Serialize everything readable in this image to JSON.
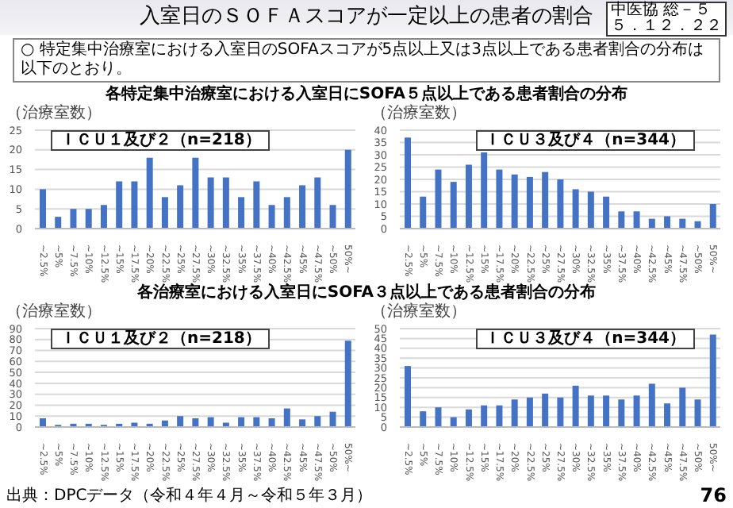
{
  "chart_data": [
    {
      "type": "bar",
      "title": "各特定集中治療室における入室日にSOFA５点以上である患者割合の分布",
      "subtitle": "ＩＣＵ１及び２（n=218）",
      "ylabel": "（治療室数）",
      "categories": [
        "~2.5%",
        "~5%",
        "~7.5%",
        "~10%",
        "~12.5%",
        "~15%",
        "~17.5%",
        "~20%",
        "~22.5%",
        "~25%",
        "~27.5%",
        "~30%",
        "~32.5%",
        "~35%",
        "~37.5%",
        "~40%",
        "~42.5%",
        "~45%",
        "~47.5%",
        "~50%",
        "50%~"
      ],
      "values": [
        10,
        3,
        5,
        5,
        6,
        12,
        12,
        18,
        8,
        11,
        18,
        13,
        13,
        8,
        12,
        6,
        8,
        11,
        13,
        6,
        20
      ],
      "color": "#4472c4",
      "ylim": [
        0,
        25
      ],
      "yticks": [
        0,
        5,
        10,
        15,
        20,
        25
      ],
      "grid": "y",
      "annotations": [
        "入室日のＳＯＦＡスコアが一定以上の患者の割合",
        "中医協 総－５",
        "５．１２．２２",
        "○ 特定集中治療室における入室日のSOFAスコアが5点以上又は3点以上である患者割合の分布は以下のとおり。",
        "出典：DPCデータ（令和４年４月～令和５年３月）",
        "76"
      ]
    },
    {
      "type": "bar",
      "subtitle": "ＩＣＵ３及び４（n=344）",
      "ylabel": "（治療室数）",
      "categories": [
        "~2.5%",
        "~5%",
        "~7.5%",
        "~10%",
        "~12.5%",
        "~15%",
        "~17.5%",
        "~20%",
        "~22.5%",
        "~25%",
        "~27.5%",
        "~30%",
        "~32.5%",
        "~35%",
        "~37.5%",
        "~40%",
        "~42.5%",
        "~45%",
        "~47.5%",
        "~50%",
        "50%~"
      ],
      "values": [
        37,
        13,
        24,
        19,
        26,
        31,
        24,
        22,
        21,
        23,
        20,
        16,
        15,
        13,
        7,
        7,
        4,
        5,
        4,
        3,
        10
      ],
      "color": "#4472c4",
      "ylim": [
        0,
        40
      ],
      "yticks": [
        0,
        5,
        10,
        15,
        20,
        25,
        30,
        35,
        40
      ],
      "grid": "y"
    },
    {
      "type": "bar",
      "title": "各治療室における入室日にSOFA３点以上である患者割合の分布",
      "subtitle": "ＩＣＵ１及び２（n=218）",
      "ylabel": "（治療室数）",
      "categories": [
        "~2.5%",
        "~5%",
        "~7.5%",
        "~10%",
        "~12.5%",
        "~15%",
        "~17.5%",
        "~20%",
        "~22.5%",
        "~25%",
        "~27.5%",
        "~30%",
        "~32.5%",
        "~35%",
        "~37.5%",
        "~40%",
        "~42.5%",
        "~45%",
        "~47.5%",
        "~50%",
        "50%~"
      ],
      "values": [
        8,
        2,
        3,
        3,
        2,
        3,
        4,
        3,
        6,
        10,
        8,
        9,
        4,
        9,
        9,
        8,
        17,
        7,
        10,
        14,
        79
      ],
      "color": "#4472c4",
      "ylim": [
        0,
        90
      ],
      "yticks": [
        0,
        10,
        20,
        30,
        40,
        50,
        60,
        70,
        80,
        90
      ],
      "grid": "y"
    },
    {
      "type": "bar",
      "subtitle": "ＩＣＵ３及び４（n=344）",
      "ylabel": "（治療室数）",
      "categories": [
        "~2.5%",
        "~5%",
        "~7.5%",
        "~10%",
        "~12.5%",
        "~15%",
        "~17.5%",
        "~20%",
        "~22.5%",
        "~25%",
        "~27.5%",
        "~30%",
        "~32.5%",
        "~35%",
        "~37.5%",
        "~40%",
        "~42.5%",
        "~45%",
        "~47.5%",
        "~50%",
        "50%~"
      ],
      "values": [
        31,
        8,
        10,
        5,
        9,
        11,
        11,
        14,
        15,
        17,
        15,
        21,
        16,
        16,
        14,
        16,
        22,
        12,
        20,
        14,
        47
      ],
      "color": "#4472c4",
      "ylim": [
        0,
        50
      ],
      "yticks": [
        0,
        5,
        10,
        15,
        20,
        25,
        30,
        35,
        40,
        45,
        50
      ],
      "grid": "y"
    }
  ]
}
